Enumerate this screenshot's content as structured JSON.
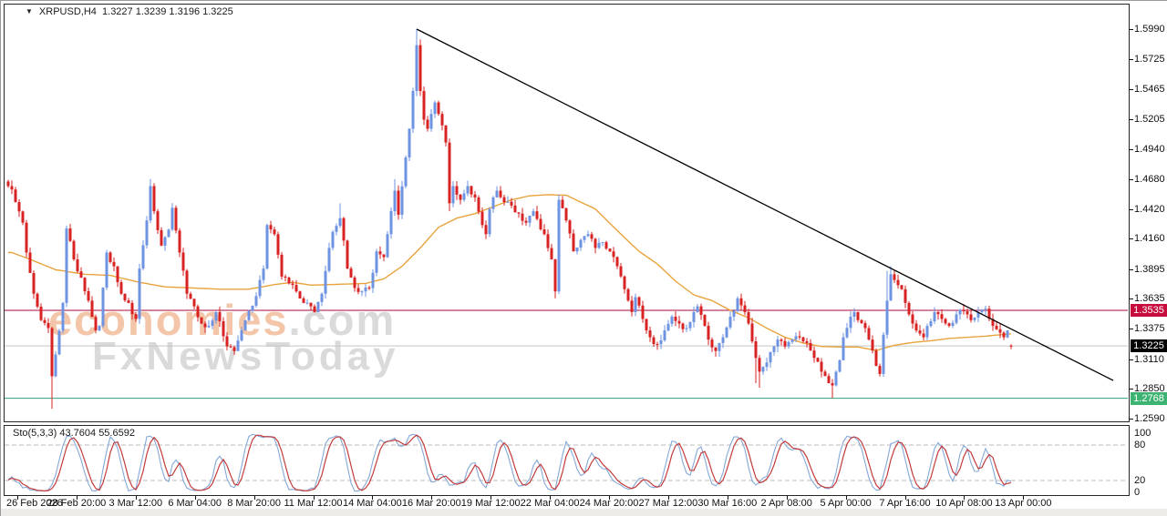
{
  "header": {
    "symbol_label": "XRPUSD,H4",
    "quote_ohlc": "1.3227 1.3239 1.3196 1.3225",
    "dropdown_icon": "▼"
  },
  "watermark": {
    "brand": "economies",
    "domain": ".com",
    "tagline": "FxNewsToday"
  },
  "price_axis": {
    "labels": [
      "1.5990",
      "1.5725",
      "1.5465",
      "1.5205",
      "1.4940",
      "1.4680",
      "1.4420",
      "1.4160",
      "1.3895",
      "1.3635",
      "1.3375",
      "1.3110",
      "1.2850",
      "1.2590"
    ]
  },
  "time_axis": {
    "labels": [
      "26 Feb 2026",
      "28 Feb 20:00",
      "3 Mar 12:00",
      "6 Mar 04:00",
      "8 Mar 20:00",
      "11 Mar 12:00",
      "14 Mar 04:00",
      "16 Mar 20:00",
      "19 Mar 12:00",
      "22 Mar 04:00",
      "24 Mar 20:00",
      "27 Mar 12:00",
      "30 Mar 16:00",
      "2 Apr 08:00",
      "5 Apr 00:00",
      "7 Apr 16:00",
      "10 Apr 08:00",
      "13 Apr 00:00"
    ]
  },
  "indicator_pane": {
    "label": "Sto(5,3,3)",
    "values": "43.7604 55.6592",
    "scale_labels": [
      "100",
      "80",
      "20",
      "0"
    ],
    "level_high": 80,
    "level_low": 20
  },
  "colors": {
    "bull": "#6e93e2",
    "bear": "#d92323",
    "ma": "#e8a33c",
    "trendline": "#000000",
    "resistance_line": "#ab0a3d",
    "resistance_badge": "#c60c3c",
    "support_line": "#31a186",
    "support_badge": "#3cb371",
    "current_line": "#c4c4c4",
    "current_badge": "#000000",
    "sto_main": "#85a8d8",
    "sto_signal": "#c33b3b",
    "sto_levels": "#bbbbbb"
  },
  "chart_data": {
    "type": "candlestick",
    "symbol": "XRPUSD",
    "timeframe": "H4",
    "last_bar": {
      "open": 1.3227,
      "high": 1.3239,
      "low": 1.3196,
      "close": 1.3225
    },
    "bars_count": 276,
    "price_axis_range": {
      "top_price": 1.599,
      "bottom_price": 1.259
    },
    "levels": [
      {
        "name": "resistance",
        "price": 1.3535,
        "badge": "1.3535"
      },
      {
        "name": "current-price",
        "price": 1.3225,
        "badge": "1.3225"
      },
      {
        "name": "support",
        "price": 1.2768,
        "badge": "1.2768"
      }
    ],
    "trendline": {
      "x1_bar": 112,
      "price1": 1.599,
      "x2_bar": 303,
      "price2": 1.2923
    },
    "close_anchors": [
      [
        0,
        1.462
      ],
      [
        1,
        1.459
      ],
      [
        2,
        1.448
      ],
      [
        4,
        1.43
      ],
      [
        5,
        1.404
      ],
      [
        7,
        1.368
      ],
      [
        9,
        1.345
      ],
      [
        11,
        1.338
      ],
      [
        12,
        1.296
      ],
      [
        13,
        1.315
      ],
      [
        15,
        1.36
      ],
      [
        16,
        1.425
      ],
      [
        18,
        1.398
      ],
      [
        20,
        1.382
      ],
      [
        22,
        1.362
      ],
      [
        24,
        1.336
      ],
      [
        25,
        1.34
      ],
      [
        27,
        1.404
      ],
      [
        29,
        1.392
      ],
      [
        31,
        1.368
      ],
      [
        33,
        1.36
      ],
      [
        35,
        1.346
      ],
      [
        36,
        1.39
      ],
      [
        38,
        1.432
      ],
      [
        39,
        1.462
      ],
      [
        40,
        1.44
      ],
      [
        42,
        1.41
      ],
      [
        44,
        1.424
      ],
      [
        45,
        1.443
      ],
      [
        47,
        1.404
      ],
      [
        49,
        1.368
      ],
      [
        51,
        1.357
      ],
      [
        53,
        1.342
      ],
      [
        55,
        1.34
      ],
      [
        57,
        1.352
      ],
      [
        58,
        1.344
      ],
      [
        60,
        1.322
      ],
      [
        62,
        1.318
      ],
      [
        64,
        1.336
      ],
      [
        66,
        1.353
      ],
      [
        68,
        1.366
      ],
      [
        70,
        1.39
      ],
      [
        71,
        1.428
      ],
      [
        73,
        1.42
      ],
      [
        75,
        1.383
      ],
      [
        77,
        1.377
      ],
      [
        79,
        1.37
      ],
      [
        81,
        1.36
      ],
      [
        83,
        1.357
      ],
      [
        84,
        1.352
      ],
      [
        86,
        1.368
      ],
      [
        88,
        1.408
      ],
      [
        89,
        1.422
      ],
      [
        91,
        1.434
      ],
      [
        93,
        1.39
      ],
      [
        95,
        1.373
      ],
      [
        97,
        1.37
      ],
      [
        99,
        1.373
      ],
      [
        101,
        1.405
      ],
      [
        103,
        1.4
      ],
      [
        104,
        1.42
      ],
      [
        106,
        1.458
      ],
      [
        107,
        1.437
      ],
      [
        109,
        1.487
      ],
      [
        110,
        1.512
      ],
      [
        111,
        1.545
      ],
      [
        112,
        1.585
      ],
      [
        113,
        1.545
      ],
      [
        114,
        1.52
      ],
      [
        115,
        1.512
      ],
      [
        116,
        1.525
      ],
      [
        117,
        1.535
      ],
      [
        118,
        1.525
      ],
      [
        119,
        1.515
      ],
      [
        120,
        1.5
      ],
      [
        121,
        1.447
      ],
      [
        122,
        1.462
      ],
      [
        124,
        1.45
      ],
      [
        126,
        1.462
      ],
      [
        128,
        1.452
      ],
      [
        130,
        1.428
      ],
      [
        131,
        1.42
      ],
      [
        132,
        1.442
      ],
      [
        134,
        1.458
      ],
      [
        136,
        1.448
      ],
      [
        138,
        1.445
      ],
      [
        140,
        1.438
      ],
      [
        142,
        1.43
      ],
      [
        144,
        1.44
      ],
      [
        147,
        1.42
      ],
      [
        149,
        1.398
      ],
      [
        150,
        1.37
      ],
      [
        151,
        1.45
      ],
      [
        153,
        1.432
      ],
      [
        155,
        1.405
      ],
      [
        157,
        1.415
      ],
      [
        159,
        1.42
      ],
      [
        161,
        1.408
      ],
      [
        163,
        1.413
      ],
      [
        165,
        1.405
      ],
      [
        167,
        1.392
      ],
      [
        169,
        1.372
      ],
      [
        171,
        1.352
      ],
      [
        172,
        1.365
      ],
      [
        174,
        1.346
      ],
      [
        176,
        1.33
      ],
      [
        178,
        1.324
      ],
      [
        180,
        1.336
      ],
      [
        182,
        1.348
      ],
      [
        184,
        1.342
      ],
      [
        186,
        1.338
      ],
      [
        188,
        1.352
      ],
      [
        189,
        1.357
      ],
      [
        191,
        1.34
      ],
      [
        192,
        1.328
      ],
      [
        194,
        1.318
      ],
      [
        196,
        1.33
      ],
      [
        198,
        1.348
      ],
      [
        199,
        1.353
      ],
      [
        200,
        1.364
      ],
      [
        202,
        1.352
      ],
      [
        203,
        1.342
      ],
      [
        205,
        1.312
      ],
      [
        206,
        1.3
      ],
      [
        208,
        1.308
      ],
      [
        210,
        1.322
      ],
      [
        211,
        1.328
      ],
      [
        213,
        1.322
      ],
      [
        215,
        1.328
      ],
      [
        217,
        1.33
      ],
      [
        219,
        1.325
      ],
      [
        221,
        1.312
      ],
      [
        223,
        1.3
      ],
      [
        225,
        1.29
      ],
      [
        226,
        1.288
      ],
      [
        228,
        1.31
      ],
      [
        229,
        1.33
      ],
      [
        231,
        1.348
      ],
      [
        232,
        1.352
      ],
      [
        233,
        1.345
      ],
      [
        235,
        1.338
      ],
      [
        236,
        1.328
      ],
      [
        238,
        1.305
      ],
      [
        239,
        1.298
      ],
      [
        241,
        1.362
      ],
      [
        242,
        1.385
      ],
      [
        243,
        1.38
      ],
      [
        245,
        1.372
      ],
      [
        246,
        1.36
      ],
      [
        248,
        1.342
      ],
      [
        249,
        1.336
      ],
      [
        251,
        1.33
      ],
      [
        253,
        1.344
      ],
      [
        254,
        1.352
      ],
      [
        256,
        1.346
      ],
      [
        258,
        1.34
      ],
      [
        260,
        1.35
      ],
      [
        261,
        1.354
      ],
      [
        263,
        1.35
      ],
      [
        264,
        1.345
      ],
      [
        266,
        1.352
      ],
      [
        268,
        1.355
      ],
      [
        269,
        1.346
      ],
      [
        270,
        1.34
      ],
      [
        272,
        1.334
      ],
      [
        273,
        1.33
      ],
      [
        274,
        1.336
      ],
      [
        275,
        1.3225
      ]
    ],
    "wick_overrides": [
      {
        "b": 12,
        "low": 1.2676
      },
      {
        "b": 112,
        "high": 1.599
      },
      {
        "b": 113,
        "high": 1.59
      },
      {
        "b": 39,
        "high": 1.468
      },
      {
        "b": 91,
        "high": 1.447
      },
      {
        "b": 106,
        "high": 1.468
      },
      {
        "b": 121,
        "low": 1.44
      },
      {
        "b": 150,
        "low": 1.364
      },
      {
        "b": 205,
        "low": 1.29
      },
      {
        "b": 206,
        "low": 1.286
      },
      {
        "b": 226,
        "low": 1.2768
      },
      {
        "b": 241,
        "high": 1.388
      },
      {
        "b": 242,
        "high": 1.392
      },
      {
        "b": 262,
        "high": 1.359
      }
    ],
    "ma_anchors": [
      [
        1,
        1.404
      ],
      [
        6,
        1.398
      ],
      [
        13,
        1.389
      ],
      [
        21,
        1.385
      ],
      [
        28,
        1.384
      ],
      [
        36,
        1.378
      ],
      [
        43,
        1.374
      ],
      [
        51,
        1.373
      ],
      [
        58,
        1.372
      ],
      [
        66,
        1.372
      ],
      [
        73,
        1.376
      ],
      [
        78,
        1.378
      ],
      [
        83,
        1.3755
      ],
      [
        88,
        1.376
      ],
      [
        98,
        1.377
      ],
      [
        103,
        1.381
      ],
      [
        108,
        1.392
      ],
      [
        113,
        1.408
      ],
      [
        118,
        1.426
      ],
      [
        123,
        1.434
      ],
      [
        128,
        1.438
      ],
      [
        133,
        1.444
      ],
      [
        138,
        1.45
      ],
      [
        143,
        1.4535
      ],
      [
        148,
        1.4545
      ],
      [
        153,
        1.454
      ],
      [
        161,
        1.442
      ],
      [
        168,
        1.42
      ],
      [
        173,
        1.405
      ],
      [
        178,
        1.394
      ],
      [
        183,
        1.379
      ],
      [
        188,
        1.367
      ],
      [
        193,
        1.362
      ],
      [
        198,
        1.3535
      ],
      [
        203,
        1.347
      ],
      [
        208,
        1.338
      ],
      [
        213,
        1.33
      ],
      [
        218,
        1.325
      ],
      [
        223,
        1.322
      ],
      [
        228,
        1.3215
      ],
      [
        233,
        1.3215
      ],
      [
        238,
        1.3185
      ],
      [
        243,
        1.323
      ],
      [
        248,
        1.3255
      ],
      [
        253,
        1.327
      ],
      [
        258,
        1.329
      ],
      [
        263,
        1.33
      ],
      [
        268,
        1.331
      ],
      [
        273,
        1.3325
      ],
      [
        275,
        1.333
      ]
    ],
    "stochastic": {
      "k_period": 5,
      "d_period": 3,
      "slowing": 3,
      "current_k": 43.7604,
      "current_d": 55.6592
    }
  }
}
